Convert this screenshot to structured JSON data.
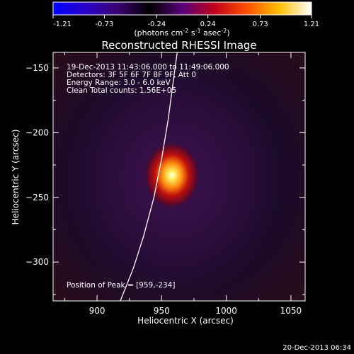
{
  "colorbar": {
    "tick_labels": [
      "-1.21",
      "-0.73",
      "-0.24",
      "0.24",
      "0.73",
      "1.21"
    ],
    "range": [
      -1.21,
      1.21
    ],
    "unit_parts": [
      "(photons cm",
      "-2",
      " s",
      "-1",
      " asec",
      "-2",
      ")"
    ],
    "colormap": [
      "#0000ff",
      "#2a00c8",
      "#3a0070",
      "#000000",
      "#5a007a",
      "#c0001a",
      "#ff5000",
      "#ffc000",
      "#ffffff"
    ]
  },
  "chart_data": {
    "type": "heatmap",
    "title": "Reconstructed RHESSI Image",
    "xlabel": "Heliocentric X (arcsec)",
    "ylabel": "Heliocentric Y (arcsec)",
    "xlim": [
      866,
      1061
    ],
    "ylim": [
      -330,
      -138
    ],
    "x_ticks": [
      900,
      950,
      1000,
      1050
    ],
    "y_ticks": [
      -150,
      -200,
      -250,
      -300
    ],
    "annotations": [
      "19-Dec-2013 11:43:06.000 to 11:49:06.000",
      "Detectors: 3F 5F 6F 7F 8F 9F, Att 0",
      "Energy Range: 3.0 - 6.0 keV",
      "Clean    Total counts: 1.56E+05"
    ],
    "peak_label": "Position of Peak = [959,-234]",
    "peak": [
      959,
      -234
    ],
    "limb_curve": [
      [
        918,
        -330
      ],
      [
        928,
        -305
      ],
      [
        936,
        -280
      ],
      [
        944,
        -250
      ],
      [
        950,
        -220
      ],
      [
        955,
        -190
      ],
      [
        959,
        -160
      ],
      [
        962,
        -138
      ]
    ]
  },
  "footer": {
    "timestamp": "20-Dec-2013 06:34"
  }
}
